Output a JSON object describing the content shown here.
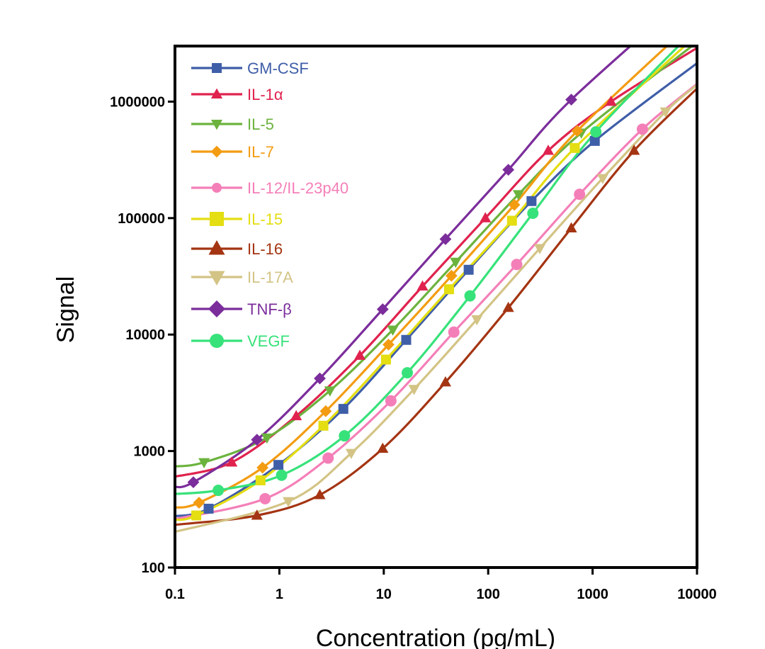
{
  "chart_data": {
    "type": "line",
    "title": "",
    "xlabel": "Concentration (pg/mL)",
    "ylabel": "Signal",
    "x_scale": "log",
    "y_scale": "log",
    "xlim": [
      0.1,
      10000
    ],
    "ylim": [
      100,
      3000000
    ],
    "x_ticks": [
      0.1,
      1,
      10,
      100,
      1000,
      10000
    ],
    "x_tick_labels": [
      "0.1",
      "1",
      "10",
      "100",
      "1000",
      "10000"
    ],
    "y_ticks": [
      100,
      1000,
      10000,
      100000,
      1000000
    ],
    "y_tick_labels": [
      "100",
      "1000",
      "10000",
      "100000",
      "1000000"
    ],
    "grid": false,
    "legend_position": "top-left",
    "series": [
      {
        "name": "GM-CSF",
        "color": "#3f5ea8",
        "marker": "square",
        "x": [
          0.21,
          0.98,
          4.1,
          16.4,
          65,
          260,
          1050
        ],
        "y": [
          320,
          760,
          2300,
          9000,
          36000,
          140000,
          460000
        ]
      },
      {
        "name": "IL-1α",
        "color": "#e0234e",
        "marker": "triangle-up",
        "x": [
          0.35,
          1.45,
          5.9,
          23.5,
          94,
          376,
          1500
        ],
        "y": [
          800,
          2000,
          6600,
          26000,
          100000,
          380000,
          1000000
        ]
      },
      {
        "name": "IL-5",
        "color": "#6cb33e",
        "marker": "triangle-down",
        "x": [
          0.19,
          0.76,
          3.05,
          12.2,
          48.8,
          195,
          780
        ],
        "y": [
          800,
          1300,
          3300,
          11000,
          42000,
          160000,
          540000
        ]
      },
      {
        "name": "IL-7",
        "color": "#f39c12",
        "marker": "diamond",
        "x": [
          0.17,
          0.69,
          2.78,
          11.1,
          44.5,
          178,
          712
        ],
        "y": [
          360,
          720,
          2200,
          8200,
          32000,
          130000,
          560000
        ]
      },
      {
        "name": "IL-12/IL-23p40",
        "color": "#f47fb8",
        "marker": "circle",
        "x": [
          0.73,
          2.93,
          11.7,
          46.9,
          187.5,
          750,
          3000
        ],
        "y": [
          390,
          870,
          2700,
          10500,
          40000,
          160000,
          580000
        ]
      },
      {
        "name": "IL-15",
        "color": "#e4de12",
        "marker": "square",
        "x": [
          0.16,
          0.66,
          2.64,
          10.5,
          42.2,
          169,
          675
        ],
        "y": [
          280,
          560,
          1650,
          6100,
          24500,
          95000,
          400000
        ]
      },
      {
        "name": "IL-16",
        "color": "#a43412",
        "marker": "triangle-up",
        "x": [
          0.61,
          2.44,
          9.77,
          39,
          156,
          625,
          2500
        ],
        "y": [
          280,
          420,
          1050,
          3900,
          17000,
          82000,
          380000
        ]
      },
      {
        "name": "IL-17A",
        "color": "#d3c485",
        "marker": "triangle-down",
        "x": [
          1.22,
          4.88,
          19.5,
          78,
          312,
          1250,
          5000
        ],
        "y": [
          370,
          960,
          3400,
          13500,
          55000,
          220000,
          820000
        ]
      },
      {
        "name": "TNF-β",
        "color": "#7b2d9b",
        "marker": "diamond",
        "x": [
          0.15,
          0.61,
          2.44,
          9.77,
          39,
          156,
          625
        ],
        "y": [
          540,
          1250,
          4200,
          16500,
          66000,
          260000,
          1040000
        ]
      },
      {
        "name": "VEGF",
        "color": "#37e27a",
        "marker": "circle",
        "x": [
          0.26,
          1.05,
          4.2,
          16.8,
          67,
          268,
          1075
        ],
        "y": [
          460,
          620,
          1350,
          4700,
          21500,
          110000,
          550000
        ]
      }
    ]
  }
}
